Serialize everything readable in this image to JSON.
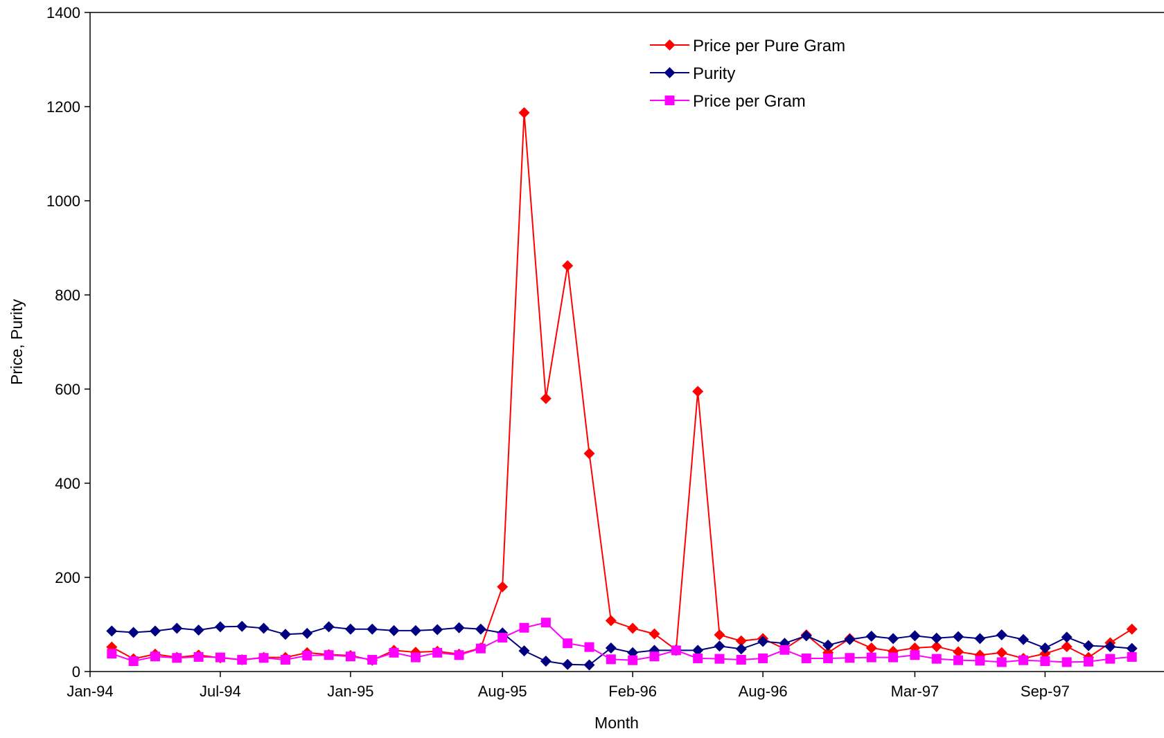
{
  "chart_data": {
    "type": "line",
    "title": "",
    "xlabel": "Month",
    "ylabel": "Price, Purity",
    "ylim": [
      0,
      1400
    ],
    "yticks": [
      0,
      200,
      400,
      600,
      800,
      1000,
      1200,
      1400
    ],
    "xticks": [
      "Jan-94",
      "Jul-94",
      "Jan-95",
      "Aug-95",
      "Feb-96",
      "Aug-96",
      "Mar-97",
      "Sep-97"
    ],
    "legend_position": "top-right",
    "grid": false,
    "x": [
      "Feb-94",
      "Mar-94",
      "Apr-94",
      "May-94",
      "Jun-94",
      "Jul-94",
      "Aug-94",
      "Sep-94",
      "Oct-94",
      "Nov-94",
      "Dec-94",
      "Jan-95",
      "Feb-95",
      "Mar-95",
      "Apr-95",
      "May-95",
      "Jun-95",
      "Jul-95",
      "Aug-95",
      "Sep-95",
      "Oct-95",
      "Nov-95",
      "Dec-95",
      "Jan-96",
      "Feb-96",
      "Mar-96",
      "Apr-96",
      "May-96",
      "Jun-96",
      "Jul-96",
      "Aug-96",
      "Sep-96",
      "Oct-96",
      "Nov-96",
      "Dec-96",
      "Jan-97",
      "Feb-97",
      "Mar-97",
      "Apr-97",
      "May-97",
      "Jun-97",
      "Jul-97",
      "Aug-97",
      "Sep-97",
      "Oct-97",
      "Nov-97",
      "Dec-97",
      "Jan-98"
    ],
    "series": [
      {
        "name": "Price per Pure Gram",
        "color": "#ff0000",
        "marker": "diamond",
        "values": [
          52,
          27,
          37,
          30,
          35,
          29,
          25,
          30,
          30,
          40,
          36,
          34,
          24,
          45,
          41,
          43,
          37,
          50,
          180,
          1187,
          580,
          862,
          463,
          108,
          92,
          80,
          46,
          595,
          78,
          65,
          70,
          48,
          78,
          40,
          70,
          50,
          43,
          50,
          53,
          42,
          35,
          40,
          28,
          38,
          53,
          30,
          61,
          90
        ]
      },
      {
        "name": "Purity",
        "color": "#000080",
        "marker": "diamond",
        "values": [
          86,
          83,
          86,
          92,
          88,
          95,
          96,
          92,
          79,
          81,
          95,
          90,
          90,
          87,
          87,
          89,
          93,
          90,
          82,
          44,
          22,
          15,
          14,
          50,
          40,
          45,
          45,
          45,
          54,
          48,
          64,
          60,
          76,
          56,
          68,
          75,
          70,
          76,
          71,
          74,
          70,
          78,
          68,
          50,
          73,
          55,
          53,
          49
        ]
      },
      {
        "name": "Price per Gram",
        "color": "#ff00ff",
        "marker": "square",
        "values": [
          38,
          22,
          32,
          29,
          31,
          30,
          25,
          29,
          25,
          34,
          35,
          32,
          25,
          40,
          30,
          40,
          35,
          49,
          72,
          93,
          104,
          60,
          52,
          26,
          24,
          32,
          45,
          28,
          27,
          25,
          28,
          46,
          28,
          28,
          29,
          30,
          30,
          35,
          27,
          24,
          23,
          20,
          24,
          22,
          20,
          21,
          27,
          31
        ]
      }
    ]
  }
}
